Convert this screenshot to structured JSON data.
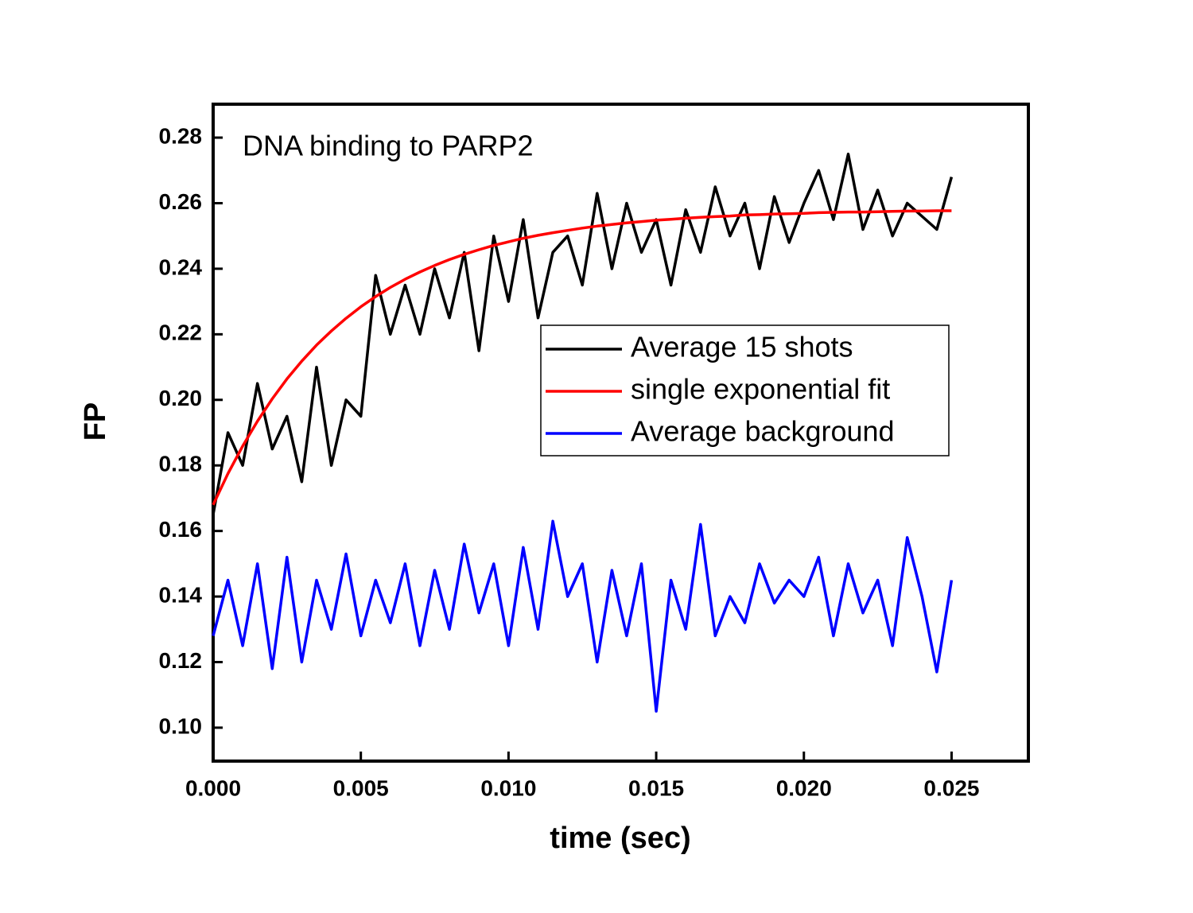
{
  "chart_data": {
    "type": "line",
    "annotation": "DNA binding to PARP2",
    "xlabel": "time (sec)",
    "ylabel": "FP",
    "x": [
      0,
      0.0005,
      0.001,
      0.0015,
      0.002,
      0.0025,
      0.003,
      0.0035,
      0.004,
      0.0045,
      0.005,
      0.0055,
      0.006,
      0.0065,
      0.007,
      0.0075,
      0.008,
      0.0085,
      0.009,
      0.0095,
      0.01,
      0.0105,
      0.011,
      0.0115,
      0.012,
      0.0125,
      0.013,
      0.0135,
      0.014,
      0.0145,
      0.015,
      0.0155,
      0.016,
      0.0165,
      0.017,
      0.0175,
      0.018,
      0.0185,
      0.019,
      0.0195,
      0.02,
      0.0205,
      0.021,
      0.0215,
      0.022,
      0.0225,
      0.023,
      0.0235,
      0.024,
      0.0245,
      0.025
    ],
    "series": [
      {
        "name": "Average 15 shots",
        "color": "#000000",
        "values": [
          0.165,
          0.19,
          0.18,
          0.205,
          0.185,
          0.195,
          0.175,
          0.21,
          0.18,
          0.2,
          0.195,
          0.238,
          0.22,
          0.235,
          0.22,
          0.24,
          0.225,
          0.245,
          0.215,
          0.25,
          0.23,
          0.255,
          0.225,
          0.245,
          0.25,
          0.235,
          0.263,
          0.24,
          0.26,
          0.245,
          0.255,
          0.235,
          0.258,
          0.245,
          0.265,
          0.25,
          0.26,
          0.24,
          0.262,
          0.248,
          0.26,
          0.27,
          0.255,
          0.275,
          0.252,
          0.264,
          0.25,
          0.26,
          0.256,
          0.252,
          0.268
        ]
      },
      {
        "name": "single exponential fit",
        "color": "#ff0000",
        "values": [
          0.168,
          0.1775,
          0.1859,
          0.1935,
          0.2003,
          0.2064,
          0.2118,
          0.2167,
          0.221,
          0.2249,
          0.2284,
          0.2315,
          0.2343,
          0.2368,
          0.239,
          0.241,
          0.2428,
          0.2444,
          0.2458,
          0.2471,
          0.2482,
          0.2493,
          0.2502,
          0.251,
          0.2517,
          0.2524,
          0.253,
          0.2535,
          0.254,
          0.2544,
          0.2548,
          0.2551,
          0.2554,
          0.2557,
          0.2559,
          0.2561,
          0.2564,
          0.2565,
          0.2567,
          0.2568,
          0.2569,
          0.2571,
          0.2572,
          0.2573,
          0.2573,
          0.2574,
          0.2575,
          0.2576,
          0.2576,
          0.2577,
          0.2577
        ]
      },
      {
        "name": "Average background",
        "color": "#0000ff",
        "values": [
          0.128,
          0.145,
          0.125,
          0.15,
          0.118,
          0.152,
          0.12,
          0.145,
          0.13,
          0.153,
          0.128,
          0.145,
          0.132,
          0.15,
          0.125,
          0.148,
          0.13,
          0.156,
          0.135,
          0.15,
          0.125,
          0.155,
          0.13,
          0.163,
          0.14,
          0.15,
          0.12,
          0.148,
          0.128,
          0.15,
          0.105,
          0.145,
          0.13,
          0.162,
          0.128,
          0.14,
          0.132,
          0.15,
          0.138,
          0.145,
          0.14,
          0.152,
          0.128,
          0.15,
          0.135,
          0.145,
          0.125,
          0.158,
          0.14,
          0.117,
          0.145
        ]
      }
    ],
    "xlim": [
      0,
      0.0276
    ],
    "ylim": [
      0.0898,
      0.2902
    ],
    "xticks": [
      {
        "value": 0,
        "label": "0.000"
      },
      {
        "value": 0.005,
        "label": "0.005"
      },
      {
        "value": 0.01,
        "label": "0.010"
      },
      {
        "value": 0.015,
        "label": "0.015"
      },
      {
        "value": 0.02,
        "label": "0.020"
      },
      {
        "value": 0.025,
        "label": "0.025"
      }
    ],
    "yticks": [
      {
        "value": 0.1,
        "label": "0.10"
      },
      {
        "value": 0.12,
        "label": "0.12"
      },
      {
        "value": 0.14,
        "label": "0.14"
      },
      {
        "value": 0.16,
        "label": "0.16"
      },
      {
        "value": 0.18,
        "label": "0.18"
      },
      {
        "value": 0.2,
        "label": "0.20"
      },
      {
        "value": 0.22,
        "label": "0.22"
      },
      {
        "value": 0.24,
        "label": "0.24"
      },
      {
        "value": 0.26,
        "label": "0.26"
      },
      {
        "value": 0.28,
        "label": "0.28"
      }
    ],
    "grid": false,
    "legend": "right",
    "annotation_color": "#0000ff"
  }
}
